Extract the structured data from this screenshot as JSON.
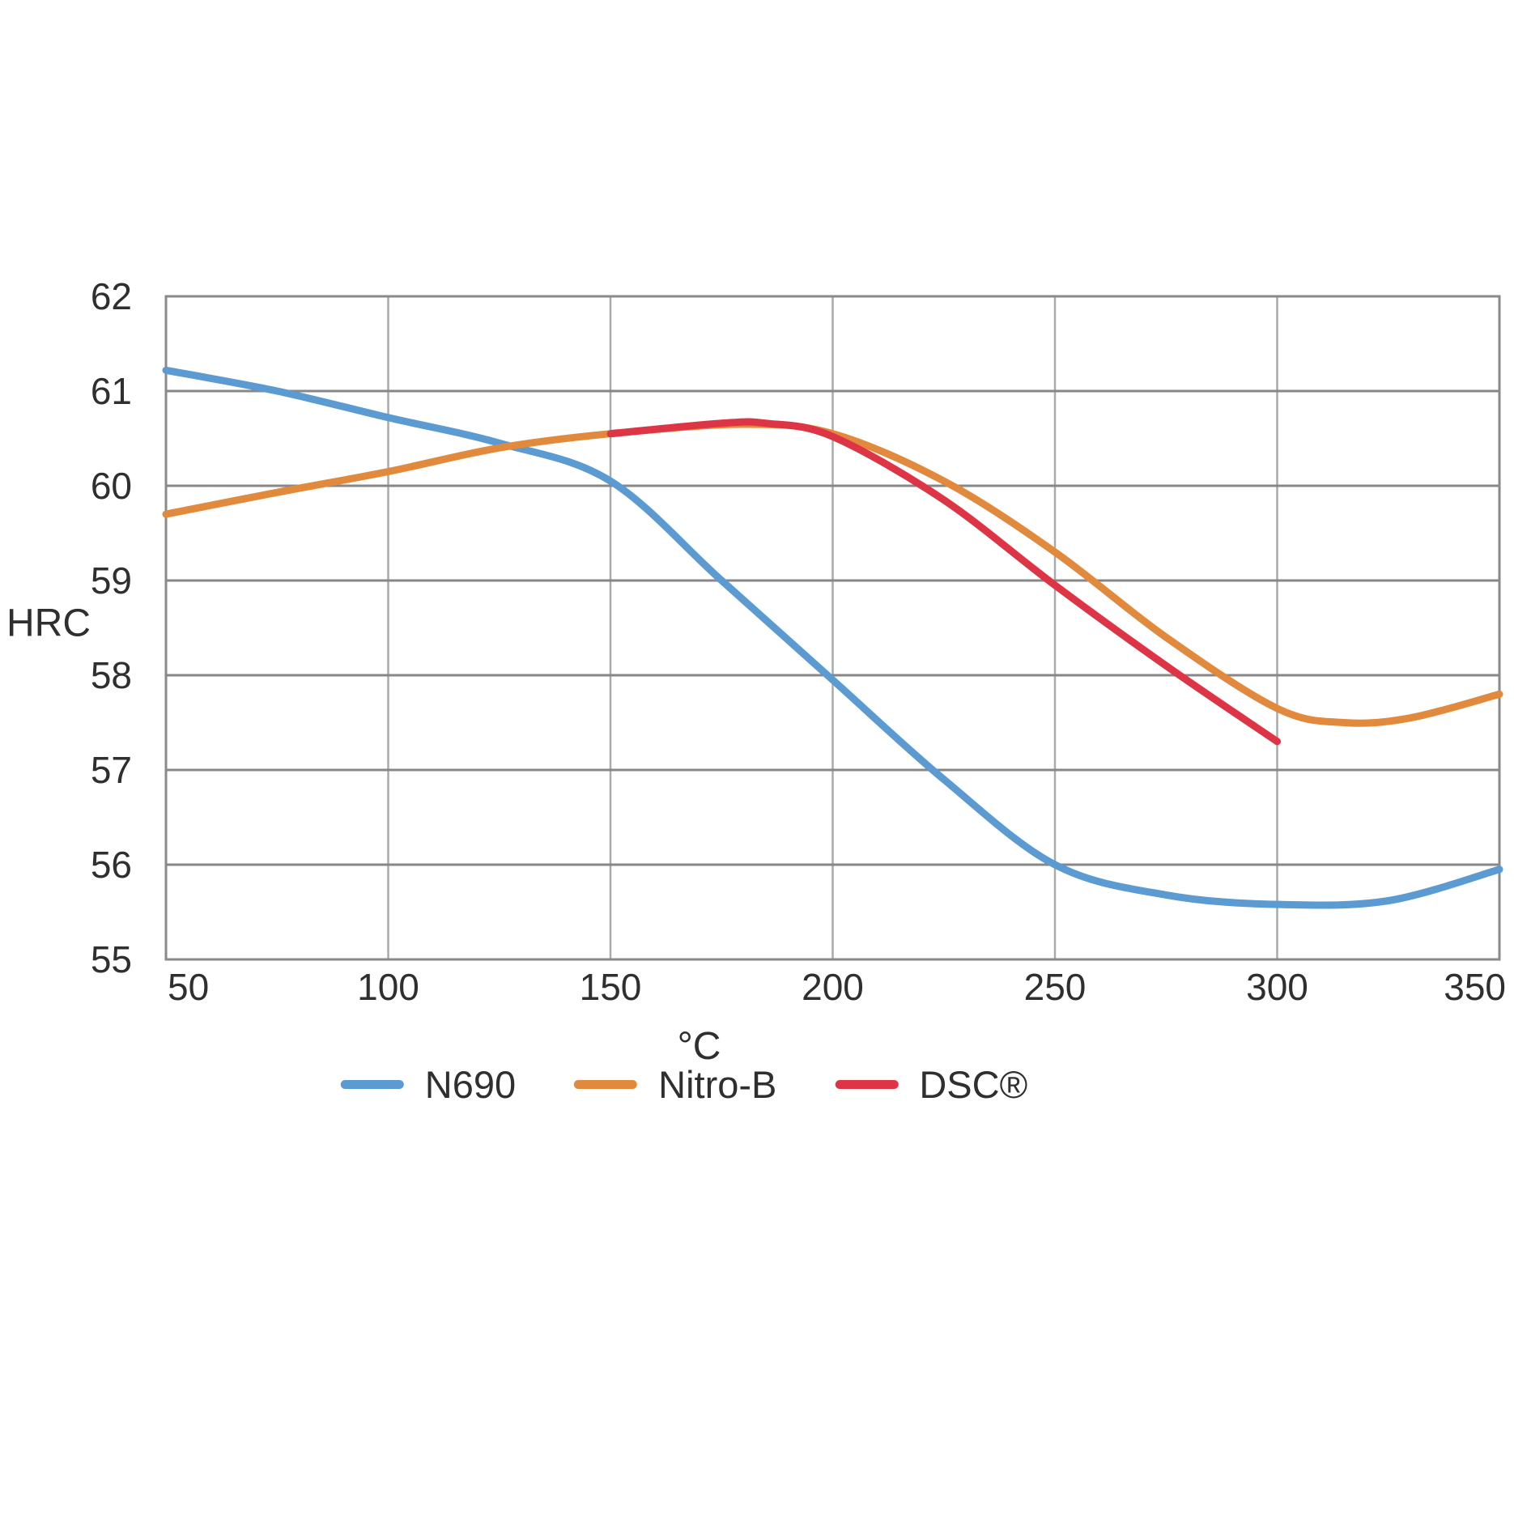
{
  "page": {
    "background_color": "#ffffff",
    "text_color": "#2f2f2f"
  },
  "chart_data": {
    "type": "line",
    "title": "",
    "xlabel": "°C",
    "ylabel": "HRC",
    "xlim": [
      50,
      350
    ],
    "ylim": [
      55,
      62
    ],
    "xticks": [
      50,
      100,
      150,
      200,
      250,
      300,
      350
    ],
    "yticks": [
      55,
      56,
      57,
      58,
      59,
      60,
      61,
      62
    ],
    "grid": true,
    "legend_position": "bottom",
    "grid_color_horizontal": "#878787",
    "grid_color_vertical": "#aaaaaa",
    "border_color": "#8a8a8a",
    "series": [
      {
        "name": "N690",
        "color": "#5b9bd1",
        "x": [
          50,
          75,
          100,
          125,
          150,
          175,
          200,
          225,
          250,
          275,
          300,
          325,
          350
        ],
        "y": [
          61.22,
          61.0,
          60.72,
          60.45,
          60.05,
          59.0,
          57.95,
          56.9,
          56.0,
          55.68,
          55.58,
          55.62,
          55.95
        ]
      },
      {
        "name": "Nitro-B",
        "color": "#e18a3d",
        "x": [
          50,
          75,
          100,
          125,
          150,
          180,
          200,
          225,
          250,
          275,
          300,
          315,
          330,
          350
        ],
        "y": [
          59.7,
          59.93,
          60.15,
          60.4,
          60.55,
          60.65,
          60.55,
          60.05,
          59.3,
          58.4,
          57.65,
          57.5,
          57.55,
          57.8
        ]
      },
      {
        "name": "DSC®",
        "color": "#dd3545",
        "x": [
          150,
          175,
          185,
          200,
          225,
          250,
          275,
          300
        ],
        "y": [
          60.55,
          60.66,
          60.66,
          60.52,
          59.85,
          58.95,
          58.1,
          57.3
        ]
      }
    ]
  }
}
